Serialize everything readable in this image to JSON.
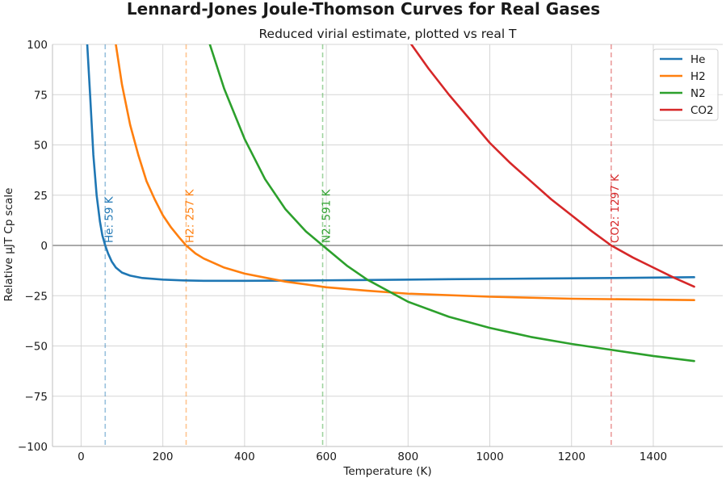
{
  "chart_data": {
    "type": "line",
    "title": "Lennard-Jones Joule-Thomson Curves for Real Gases",
    "subtitle": "Reduced virial estimate, plotted vs real T",
    "xlabel": "Temperature (K)",
    "ylabel": "Relative μJT Cp scale",
    "xlim": [
      -70,
      1570
    ],
    "ylim": [
      -100,
      100
    ],
    "x_ticks": [
      0,
      200,
      400,
      600,
      800,
      1000,
      1200,
      1400
    ],
    "y_ticks": [
      -100,
      -75,
      -50,
      -25,
      0,
      25,
      50,
      75,
      100
    ],
    "x_tick_labels": [
      "0",
      "200",
      "400",
      "600",
      "800",
      "1000",
      "1200",
      "1400"
    ],
    "y_tick_labels": [
      "−100",
      "−75",
      "−50",
      "−25",
      "0",
      "25",
      "50",
      "75",
      "100"
    ],
    "grid": true,
    "legend_position": "top-right",
    "zero_line": true,
    "series": [
      {
        "name": "He",
        "color": "#1f77b4",
        "inversion_T": 59,
        "inversion_label": "He: 59 K",
        "x": [
          15,
          22,
          30,
          38,
          46,
          52,
          59,
          66,
          75,
          85,
          100,
          120,
          150,
          200,
          250,
          300,
          400,
          500,
          700,
          900,
          1100,
          1300,
          1500
        ],
        "y": [
          100,
          75,
          45,
          25,
          12,
          5,
          0,
          -4,
          -8,
          -11,
          -13.5,
          -15,
          -16.2,
          -17,
          -17.4,
          -17.6,
          -17.6,
          -17.5,
          -17.2,
          -16.8,
          -16.5,
          -16.2,
          -15.8
        ]
      },
      {
        "name": "H2",
        "color": "#ff7f0e",
        "inversion_T": 257,
        "inversion_label": "H2: 257 K",
        "x": [
          85,
          100,
          120,
          140,
          160,
          180,
          200,
          220,
          240,
          257,
          280,
          300,
          350,
          400,
          500,
          600,
          700,
          800,
          1000,
          1200,
          1500
        ],
        "y": [
          100,
          80,
          60,
          45,
          32,
          23,
          15,
          9,
          4,
          0,
          -4,
          -6.5,
          -11,
          -14,
          -18,
          -20.8,
          -22.5,
          -24,
          -25.5,
          -26.5,
          -27.2
        ]
      },
      {
        "name": "N2",
        "color": "#2ca02c",
        "inversion_T": 591,
        "inversion_label": "N2: 591 K",
        "x": [
          315,
          350,
          400,
          450,
          500,
          550,
          591,
          650,
          700,
          800,
          900,
          1000,
          1100,
          1200,
          1300,
          1400,
          1500
        ],
        "y": [
          100,
          78,
          53,
          33,
          18,
          7,
          0,
          -10,
          -17,
          -28,
          -35.5,
          -41,
          -45.5,
          -49,
          -52,
          -55,
          -57.5
        ]
      },
      {
        "name": "CO2",
        "color": "#d62728",
        "inversion_T": 1297,
        "inversion_label": "CO2: 1297 K",
        "x": [
          808,
          850,
          900,
          950,
          1000,
          1050,
          1100,
          1150,
          1200,
          1250,
          1297,
          1350,
          1400,
          1450,
          1500
        ],
        "y": [
          100,
          88,
          75,
          63,
          51,
          41,
          32,
          23,
          15,
          7,
          0,
          -6,
          -11,
          -16,
          -20.5
        ]
      }
    ]
  }
}
